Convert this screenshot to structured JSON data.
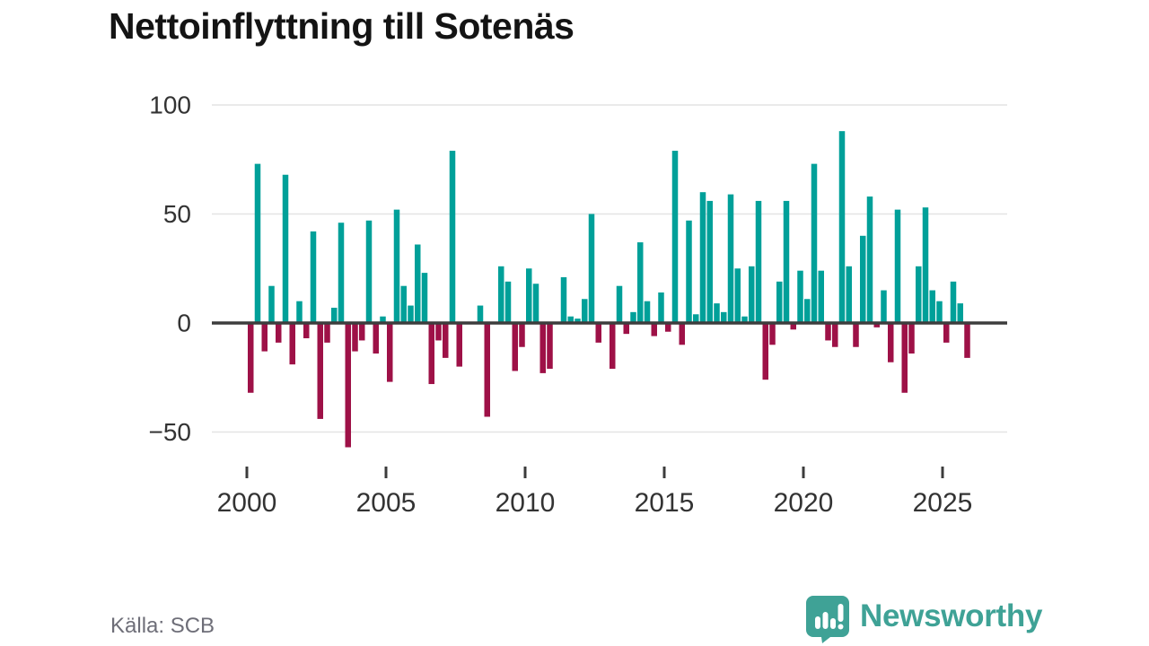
{
  "page": {
    "title": "Nettoinflyttning till Sotenäs",
    "source": "Källa: SCB",
    "brand": "Newsworthy"
  },
  "colors": {
    "positive_bar": "#00a099",
    "negative_bar": "#9e1147",
    "gridline": "#e4e4e4",
    "zero_line": "#3d3d3d",
    "axis_text": "#333333",
    "source_text": "#6e6e78",
    "brand_teal": "#3fa296",
    "title_text": "#141414"
  },
  "chart_data": {
    "type": "bar",
    "title": "Nettoinflyttning till Sotenäs",
    "frequency": "quarterly",
    "start": "2000Q1",
    "end": "2025Q4",
    "grid": "horizontal",
    "legend": "none",
    "ylim": [
      -62,
      104
    ],
    "y_ticks": [
      100,
      50,
      0,
      -50
    ],
    "y_tick_labels": [
      "100",
      "50",
      "0",
      "−50"
    ],
    "x_tick_years": [
      2000,
      2005,
      2010,
      2015,
      2020,
      2025
    ],
    "x_tick_labels": [
      "2000",
      "2005",
      "2010",
      "2015",
      "2020",
      "2025"
    ],
    "values": [
      -32,
      73,
      -13,
      17,
      -9,
      68,
      -19,
      10,
      -7,
      42,
      -44,
      -9,
      7,
      46,
      -57,
      -13,
      -8,
      47,
      -14,
      3,
      -27,
      52,
      17,
      8,
      36,
      23,
      -28,
      -8,
      -16,
      79,
      -20,
      0,
      0,
      8,
      -43,
      0,
      26,
      19,
      -22,
      -11,
      25,
      18,
      -23,
      -21,
      0,
      21,
      3,
      2,
      11,
      50,
      -9,
      0,
      -21,
      17,
      -5,
      5,
      37,
      10,
      -6,
      14,
      -4,
      79,
      -10,
      47,
      4,
      60,
      56,
      9,
      5,
      59,
      25,
      3,
      26,
      56,
      -26,
      -10,
      19,
      56,
      -3,
      24,
      11,
      73,
      24,
      -8,
      -11,
      88,
      26,
      -11,
      40,
      58,
      -2,
      15,
      -18,
      52,
      -32,
      -14,
      26,
      53,
      15,
      10,
      -9,
      19,
      9,
      -16
    ]
  }
}
